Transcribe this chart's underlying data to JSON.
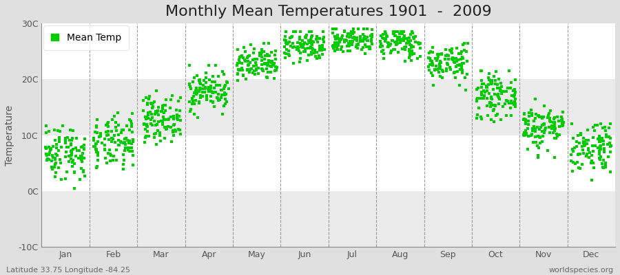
{
  "title": "Monthly Mean Temperatures 1901  -  2009",
  "ylabel": "Temperature",
  "outer_bg": "#e0e0e0",
  "plot_bg_white": "#ffffff",
  "plot_bg_gray": "#ebebeb",
  "dot_color": "#00cc00",
  "dot_size": 12,
  "ylim": [
    -10,
    30
  ],
  "yticks": [
    -10,
    0,
    10,
    20,
    30
  ],
  "ytick_labels": [
    "-10C",
    "0C",
    "10C",
    "20C",
    "30C"
  ],
  "months": [
    "Jan",
    "Feb",
    "Mar",
    "Apr",
    "May",
    "Jun",
    "Jul",
    "Aug",
    "Sep",
    "Oct",
    "Nov",
    "Dec"
  ],
  "month_means": [
    7.0,
    8.5,
    13.0,
    18.0,
    22.5,
    26.0,
    27.0,
    26.5,
    23.0,
    17.0,
    11.5,
    8.0
  ],
  "month_stds": [
    2.5,
    2.3,
    2.0,
    1.8,
    1.6,
    1.4,
    1.2,
    1.4,
    1.7,
    1.9,
    2.1,
    2.4
  ],
  "month_mins": [
    -2.0,
    0.5,
    7.0,
    12.5,
    18.0,
    22.0,
    24.0,
    23.0,
    18.0,
    12.0,
    6.0,
    2.0
  ],
  "month_maxs": [
    12.5,
    14.0,
    18.0,
    22.5,
    26.5,
    28.5,
    29.0,
    28.5,
    26.5,
    21.5,
    16.5,
    12.0
  ],
  "n_years": 109,
  "seed": 42,
  "subtitle_left": "Latitude 33.75 Longitude -84.25",
  "subtitle_right": "worldspecies.org",
  "legend_label": "Mean Temp",
  "title_fontsize": 16,
  "label_fontsize": 10,
  "tick_fontsize": 9,
  "subtitle_fontsize": 8
}
